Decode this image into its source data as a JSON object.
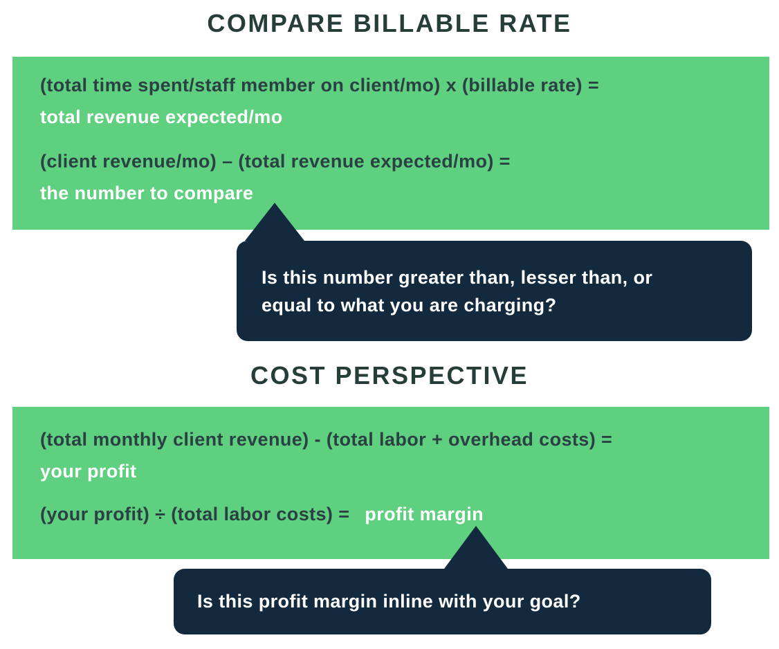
{
  "colors": {
    "green": "#5fd080",
    "navy": "#132a3e",
    "dark_text": "#2b4043",
    "title_text": "#263d3a",
    "white_text": "#ffffff"
  },
  "section1": {
    "title": "COMPARE BILLABLE RATE",
    "formula1": {
      "expression": "(total time spent/staff member on client/mo) x (billable rate) =",
      "result": "total revenue expected/mo"
    },
    "formula2": {
      "expression": "(client revenue/mo) – (total revenue expected/mo) =",
      "result": "the number to compare"
    },
    "callout": {
      "line1": "Is this number greater than, lesser than, or",
      "line2": "equal to what you are charging?"
    }
  },
  "section2": {
    "title": "COST PERSPECTIVE",
    "formula1": {
      "expression": "(total monthly client revenue) - (total labor + overhead costs) =",
      "result": "your profit"
    },
    "formula2": {
      "expression": "(your profit) ÷ (total labor costs) =",
      "result": "profit margin"
    },
    "callout": {
      "line1": "Is this profit margin inline with your goal?"
    }
  }
}
